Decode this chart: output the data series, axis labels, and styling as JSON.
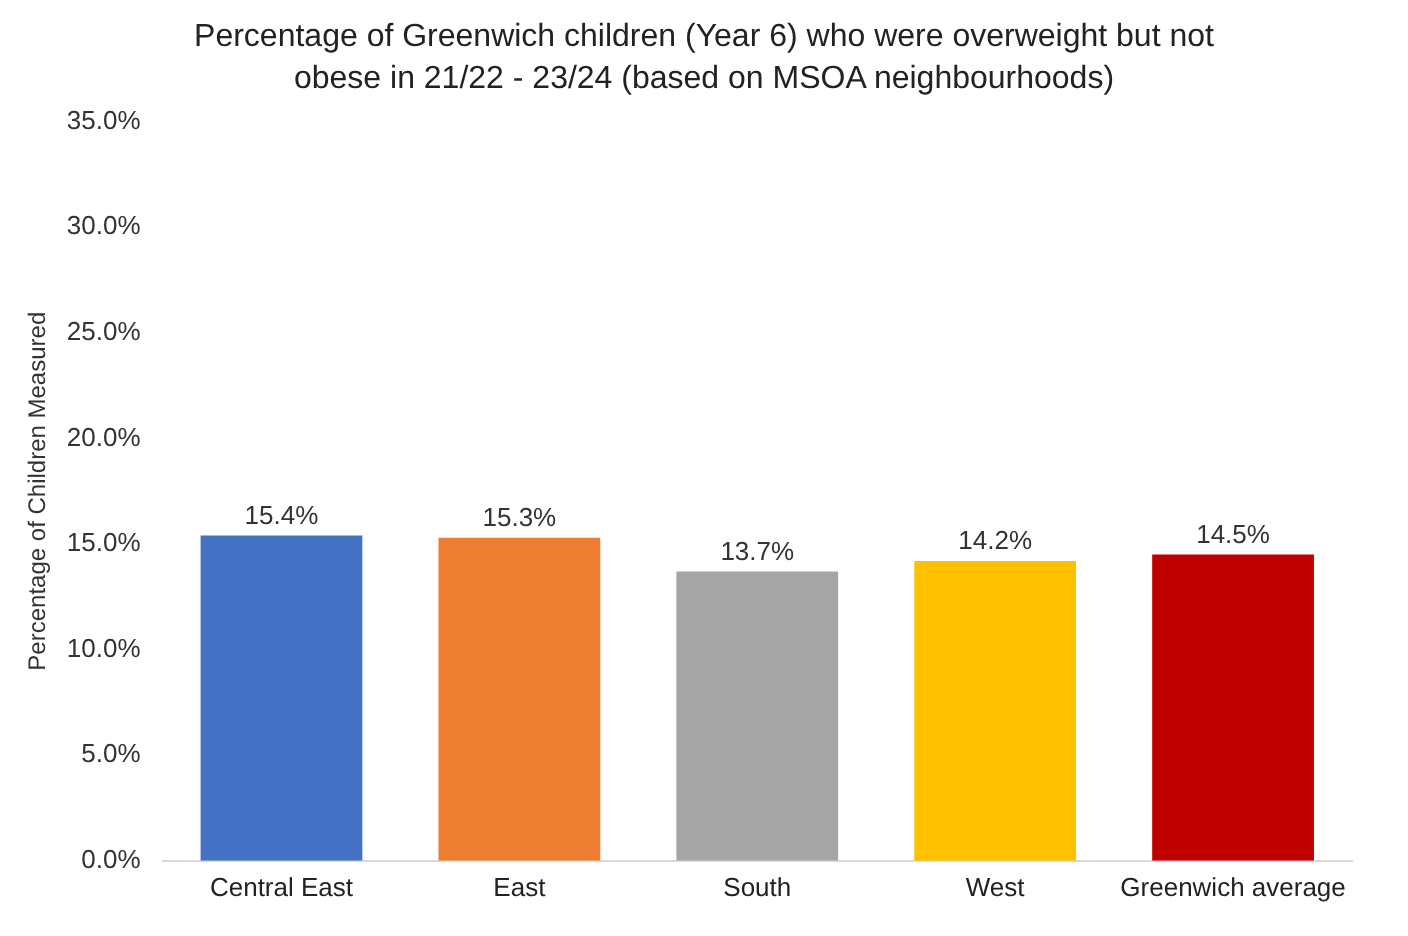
{
  "chart_data": {
    "type": "bar",
    "title": "Percentage of Greenwich children (Year 6) who were overweight but not obese in 21/22 - 23/24 (based on MSOA neighbourhoods)",
    "ylabel": "Percentage of Children Measured",
    "categories": [
      "Central East",
      "East",
      "South",
      "West",
      "Greenwich average"
    ],
    "values": [
      15.4,
      15.3,
      13.7,
      14.2,
      14.5
    ],
    "colors": [
      "#4472c4",
      "#ed7d31",
      "#a5a5a5",
      "#ffc000",
      "#c00000"
    ],
    "value_labels": [
      "15.4%",
      "15.3%",
      "13.7%",
      "14.2%",
      "14.5%"
    ],
    "ylim": [
      0,
      35
    ],
    "yticks": [
      {
        "value": 0,
        "label": "0.0%"
      },
      {
        "value": 5,
        "label": "5.0%"
      },
      {
        "value": 10,
        "label": "10.0%"
      },
      {
        "value": 15,
        "label": "15.0%"
      },
      {
        "value": 20,
        "label": "20.0%"
      },
      {
        "value": 25,
        "label": "25.0%"
      },
      {
        "value": 30,
        "label": "30.0%"
      },
      {
        "value": 35,
        "label": "35.0%"
      }
    ],
    "grid": false
  }
}
